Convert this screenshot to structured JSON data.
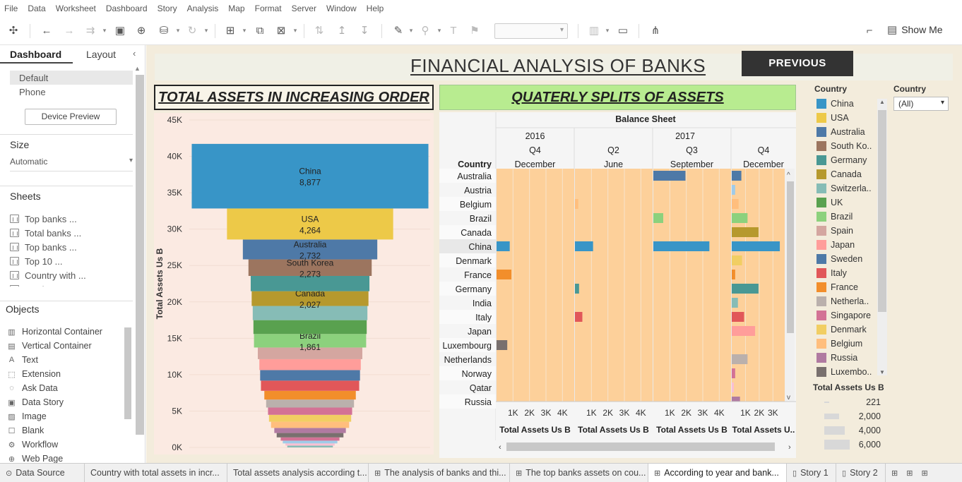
{
  "menu": [
    "File",
    "Data",
    "Worksheet",
    "Dashboard",
    "Story",
    "Analysis",
    "Map",
    "Format",
    "Server",
    "Window",
    "Help"
  ],
  "toolbar": {
    "show_me": "Show Me"
  },
  "left_pane": {
    "tabs": {
      "dashboard": "Dashboard",
      "layout": "Layout"
    },
    "devices": [
      "Default",
      "Phone"
    ],
    "device_preview": "Device Preview",
    "size_title": "Size",
    "size_value": "Automatic",
    "sheets_title": "Sheets",
    "sheets": [
      "Top banks ...",
      "Total banks ...",
      "Top banks ...",
      "Top 10 ...",
      "Country with ...",
      "Total assets ..."
    ],
    "objects_title": "Objects",
    "objects": [
      {
        "label": "Horizontal Container",
        "icon": "▥"
      },
      {
        "label": "Vertical Container",
        "icon": "▤"
      },
      {
        "label": "Text",
        "icon": "A"
      },
      {
        "label": "Extension",
        "icon": "⬚"
      },
      {
        "label": "Ask Data",
        "icon": "◌"
      },
      {
        "label": "Data Story",
        "icon": "▣"
      },
      {
        "label": "Image",
        "icon": "▨"
      },
      {
        "label": "Blank",
        "icon": "☐"
      },
      {
        "label": "Workflow",
        "icon": "⚙"
      },
      {
        "label": "Web Page",
        "icon": "⊕"
      }
    ]
  },
  "dashboard": {
    "title": "FINANCIAL ANALYSIS OF BANKS",
    "previous_button": "PREVIOUS",
    "left_chart_title": "TOTAL ASSETS IN INCREASING ORDER",
    "right_chart_title": "QUATERLY SPLITS OF ASSETS"
  },
  "chart_data": [
    {
      "type": "bar",
      "title": "TOTAL ASSETS IN INCREASING ORDER",
      "ylabel": "Total Assets Us B",
      "ylim": [
        0,
        45000
      ],
      "yticks": [
        "0K",
        "5K",
        "10K",
        "15K",
        "20K",
        "25K",
        "30K",
        "35K",
        "40K",
        "45K"
      ],
      "layout_note": "stacked centered funnel, ordered by value",
      "categories": [
        "China",
        "USA",
        "Australia",
        "South Korea",
        "Germany",
        "Canada",
        "Switzerland",
        "UK",
        "Brazil",
        "Spain",
        "Japan",
        "Sweden",
        "Italy",
        "France",
        "Netherlands",
        "Singapore",
        "Denmark",
        "Belgium",
        "Russia",
        "Luxembourg",
        "Norway",
        "Austria",
        "Qatar",
        "India"
      ],
      "values": [
        8877,
        4264,
        2732,
        2273,
        2100,
        2027,
        1950,
        1900,
        1861,
        1600,
        1500,
        1450,
        1400,
        1200,
        1100,
        1000,
        950,
        850,
        700,
        600,
        450,
        380,
        300,
        250
      ],
      "data_labels": {
        "China": "8,877",
        "USA": "4,264",
        "Australia": "2,732",
        "South Korea": "2,273",
        "Canada": "2,027",
        "Brazil": "1,861"
      },
      "colors": [
        "#3895c7",
        "#edc948",
        "#4e79a7",
        "#9c755f",
        "#499894",
        "#b6992d",
        "#86bcb6",
        "#59a14f",
        "#8cd17d",
        "#d4a6a0",
        "#ff9d9a",
        "#4e79a7",
        "#e15759",
        "#f28e2b",
        "#bab0ac",
        "#d37295",
        "#f1ce63",
        "#ffbe7d",
        "#b07aa1",
        "#79706e",
        "#d37295",
        "#a0cbe8",
        "#fabfd2",
        "#86bcb6"
      ]
    },
    {
      "type": "table",
      "title": "QUATERLY SPLITS OF ASSETS",
      "header": "Balance Sheet",
      "years": [
        {
          "label": "2016",
          "span": 1
        },
        {
          "label": "2017",
          "span": 3
        }
      ],
      "quarters": [
        "Q4",
        "Q2",
        "Q3",
        "Q4"
      ],
      "months": [
        "December",
        "June",
        "September",
        "December"
      ],
      "row_header": "Country",
      "rows": [
        "Australia",
        "Austria",
        "Belgium",
        "Brazil",
        "Canada",
        "China",
        "Denmark",
        "France",
        "Germany",
        "India",
        "Italy",
        "Japan",
        "Luxembourg",
        "Netherlands",
        "Norway",
        "Qatar",
        "Russia"
      ],
      "axis_ticks": [
        [
          "1K",
          "2K",
          "3K",
          "4K"
        ],
        [
          "1K",
          "2K",
          "3K",
          "4K"
        ],
        [
          "1K",
          "2K",
          "3K",
          "4K"
        ],
        [
          "1K",
          "2K",
          "3K"
        ]
      ],
      "axis_titles": [
        "Total Assets Us B",
        "Total Assets Us B",
        "Total Assets Us B",
        "Total Assets U.."
      ],
      "axis_max": [
        4500,
        4500,
        4500,
        3600
      ],
      "values": [
        [
          0,
          0,
          1950,
          700
        ],
        [
          0,
          0,
          0,
          250
        ],
        [
          0,
          200,
          0,
          500
        ],
        [
          0,
          0,
          600,
          1150
        ],
        [
          0,
          0,
          0,
          1950
        ],
        [
          800,
          1100,
          3400,
          3500
        ],
        [
          0,
          0,
          0,
          750
        ],
        [
          900,
          0,
          0,
          250
        ],
        [
          0,
          250,
          0,
          1950
        ],
        [
          0,
          0,
          0,
          450
        ],
        [
          0,
          450,
          0,
          900
        ],
        [
          0,
          0,
          0,
          1700
        ],
        [
          650,
          0,
          0,
          0
        ],
        [
          0,
          0,
          0,
          1150
        ],
        [
          0,
          0,
          0,
          250
        ],
        [
          0,
          0,
          0,
          150
        ],
        [
          0,
          0,
          0,
          600
        ]
      ],
      "row_colors": [
        "#4e79a7",
        "#a0cbe8",
        "#ffbe7d",
        "#8cd17d",
        "#b6992d",
        "#3895c7",
        "#f1ce63",
        "#f28e2b",
        "#499894",
        "#86bcb6",
        "#e15759",
        "#ff9d9a",
        "#79706e",
        "#bab0ac",
        "#d37295",
        "#fabfd2",
        "#b07aa1"
      ],
      "cell_background": "#fdd09a"
    }
  ],
  "legend_country": {
    "title": "Country",
    "items": [
      {
        "label": "China",
        "color": "#3895c7"
      },
      {
        "label": "USA",
        "color": "#edc948"
      },
      {
        "label": "Australia",
        "color": "#4e79a7"
      },
      {
        "label": "South Ko..",
        "color": "#9c755f"
      },
      {
        "label": "Germany",
        "color": "#499894"
      },
      {
        "label": "Canada",
        "color": "#b6992d"
      },
      {
        "label": "Switzerla..",
        "color": "#86bcb6"
      },
      {
        "label": "UK",
        "color": "#59a14f"
      },
      {
        "label": "Brazil",
        "color": "#8cd17d"
      },
      {
        "label": "Spain",
        "color": "#d4a6a0"
      },
      {
        "label": "Japan",
        "color": "#ff9d9a"
      },
      {
        "label": "Sweden",
        "color": "#4e79a7"
      },
      {
        "label": "Italy",
        "color": "#e15759"
      },
      {
        "label": "France",
        "color": "#f28e2b"
      },
      {
        "label": "Netherla..",
        "color": "#bab0ac"
      },
      {
        "label": "Singapore",
        "color": "#d37295"
      },
      {
        "label": "Denmark",
        "color": "#f1ce63"
      },
      {
        "label": "Belgium",
        "color": "#ffbe7d"
      },
      {
        "label": "Russia",
        "color": "#b07aa1"
      },
      {
        "label": "Luxembo..",
        "color": "#79706e"
      }
    ]
  },
  "filter_country": {
    "title": "Country",
    "value": "(All)"
  },
  "legend_size": {
    "title": "Total Assets Us B",
    "items": [
      {
        "label": "221",
        "size": 221
      },
      {
        "label": "2,000",
        "size": 2000
      },
      {
        "label": "4,000",
        "size": 4000
      },
      {
        "label": "6,000",
        "size": 6000
      }
    ]
  },
  "bottom_tabs": [
    {
      "label": "Data Source",
      "icon": "⊙",
      "active": false
    },
    {
      "label": "Country with total assets in incr...",
      "icon": "",
      "active": false
    },
    {
      "label": "Total assets analysis according t...",
      "icon": "",
      "active": false
    },
    {
      "label": "The analysis of banks and thi...",
      "icon": "⊞",
      "active": false
    },
    {
      "label": "The top banks assets on cou...",
      "icon": "⊞",
      "active": false
    },
    {
      "label": "According to year and bank...",
      "icon": "⊞",
      "active": true
    },
    {
      "label": "Story 1",
      "icon": "▯",
      "active": false
    },
    {
      "label": "Story 2",
      "icon": "▯",
      "active": false
    }
  ]
}
